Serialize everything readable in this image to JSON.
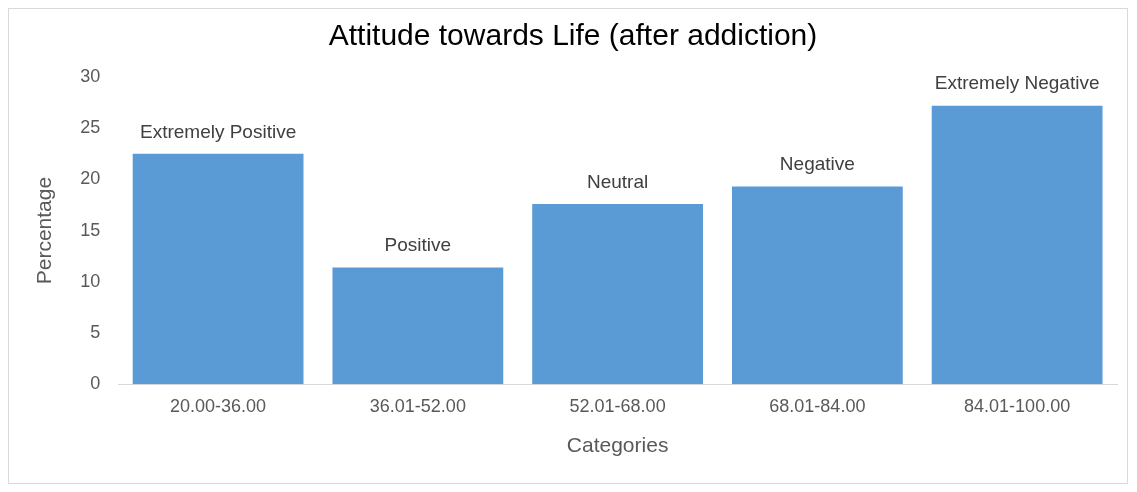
{
  "chart_data": {
    "type": "bar",
    "title": "Attitude towards Life (after addiction)",
    "xlabel": "Categories",
    "ylabel": "Percentage",
    "categories": [
      "20.00-36.00",
      "36.01-52.00",
      "52.01-68.00",
      "68.01-84.00",
      "84.01-100.00"
    ],
    "values": [
      22.5,
      11.4,
      17.6,
      19.3,
      27.2
    ],
    "color": "#5b9bd5",
    "ylim": [
      0,
      30
    ],
    "yticks": [
      0,
      5,
      10,
      15,
      20,
      25,
      30
    ],
    "grid": false,
    "legend": false,
    "annotations": [
      {
        "text": "Extremely Positive",
        "x": "20.00-36.00",
        "y": 22.5
      },
      {
        "text": "Positive",
        "x": "36.01-52.00",
        "y": 11.4
      },
      {
        "text": "Neutral",
        "x": "52.01-68.00",
        "y": 17.6
      },
      {
        "text": "Negative",
        "x": "68.01-84.00",
        "y": 19.3
      },
      {
        "text": "Extremely Negative",
        "x": "84.01-100.00",
        "y": 27.2
      }
    ]
  }
}
